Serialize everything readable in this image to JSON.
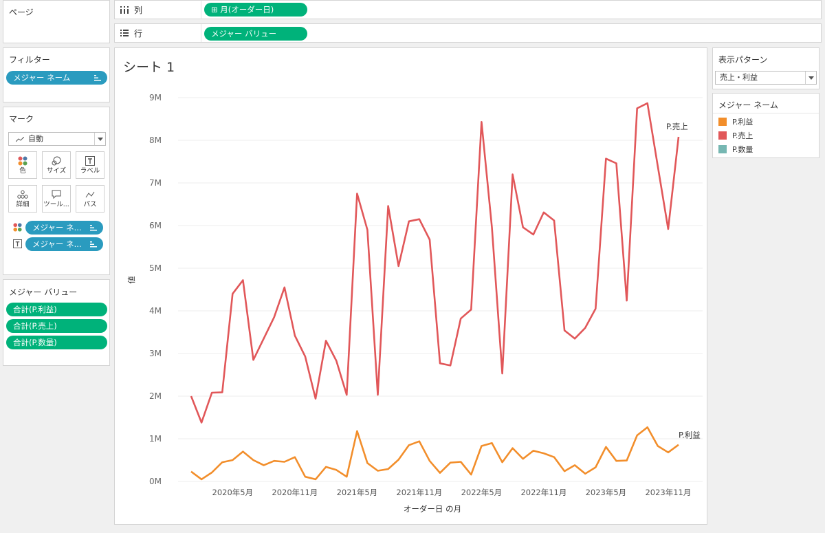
{
  "pages": {
    "title": "ページ"
  },
  "shelves": {
    "columns": {
      "label": "列",
      "pill": "月(オーダー日)",
      "pill_icon": "⊞"
    },
    "rows": {
      "label": "行",
      "pill": "メジャー バリュー"
    }
  },
  "filters": {
    "title": "フィルター",
    "pill": "メジャー ネーム"
  },
  "marks": {
    "title": "マーク",
    "type": "自動",
    "buttons": {
      "color": "色",
      "size": "サイズ",
      "label": "ラベル",
      "detail": "詳細",
      "tooltip": "ツール...",
      "path": "パス"
    },
    "color_pill": "メジャー ネ...",
    "label_pill": "メジャー ネ..."
  },
  "measure_values": {
    "title": "メジャー バリュー",
    "items": [
      "合計(P.利益)",
      "合計(P.売上)",
      "合計(P.数量)"
    ]
  },
  "sheet": {
    "title": "シート 1"
  },
  "show_me": {
    "title": "表示パターン",
    "value": "売上・利益"
  },
  "legend": {
    "title": "メジャー ネーム",
    "items": [
      {
        "name": "P.利益",
        "color": "#f28e2b"
      },
      {
        "name": "P.売上",
        "color": "#e15759"
      },
      {
        "name": "P.数量",
        "color": "#76b7b2"
      }
    ]
  },
  "chart_data": {
    "type": "line",
    "title": "シート 1",
    "xlabel": "オーダー日 の月",
    "ylabel": "値",
    "x_ticks": [
      "2020年5月",
      "2020年11月",
      "2021年5月",
      "2021年11月",
      "2022年5月",
      "2022年11月",
      "2023年5月",
      "2023年11月"
    ],
    "y_ticks": [
      "0M",
      "1M",
      "2M",
      "3M",
      "4M",
      "5M",
      "6M",
      "7M",
      "8M",
      "9M"
    ],
    "ylim": [
      0,
      9000000
    ],
    "x_start": "2020年1月",
    "x_end": "2023年12月",
    "grid": true,
    "series": [
      {
        "name": "P.売上",
        "color": "#e15759",
        "end_label": "P.売上",
        "values": [
          2000000,
          1380000,
          2080000,
          2090000,
          4400000,
          4720000,
          2850000,
          3350000,
          3850000,
          4550000,
          3420000,
          2930000,
          1940000,
          3300000,
          2830000,
          2030000,
          6750000,
          5900000,
          2030000,
          6460000,
          5050000,
          6100000,
          6150000,
          5670000,
          2770000,
          2720000,
          3820000,
          4030000,
          8430000,
          5960000,
          2530000,
          7200000,
          5960000,
          5790000,
          6310000,
          6120000,
          3540000,
          3350000,
          3600000,
          4050000,
          7570000,
          7460000,
          4240000,
          8750000,
          8870000,
          7390000,
          5920000,
          8080000
        ]
      },
      {
        "name": "P.利益",
        "color": "#f28e2b",
        "end_label": "P.利益",
        "values": [
          230000,
          50000,
          210000,
          450000,
          500000,
          700000,
          500000,
          380000,
          480000,
          460000,
          570000,
          110000,
          50000,
          340000,
          270000,
          110000,
          1180000,
          430000,
          250000,
          290000,
          510000,
          850000,
          940000,
          480000,
          200000,
          440000,
          460000,
          160000,
          830000,
          900000,
          450000,
          780000,
          530000,
          720000,
          660000,
          570000,
          240000,
          380000,
          180000,
          330000,
          810000,
          480000,
          490000,
          1080000,
          1270000,
          830000,
          680000,
          860000
        ]
      }
    ]
  }
}
